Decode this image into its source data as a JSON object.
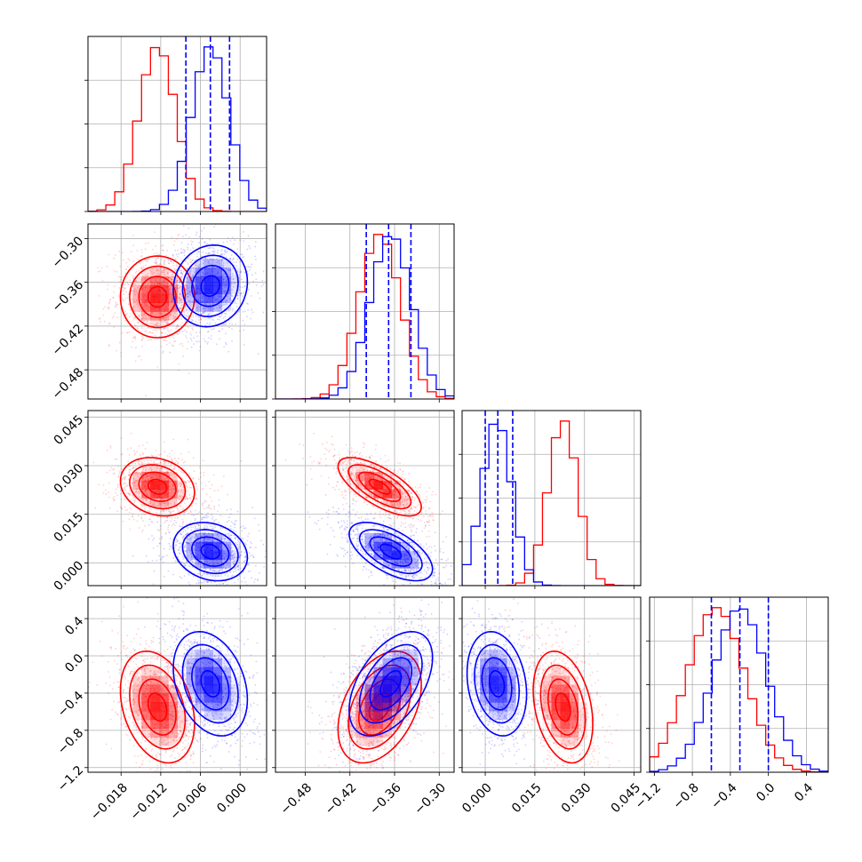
{
  "colors": {
    "red": "#ff0000",
    "blue": "#0000ff",
    "grid": "#b0b0b0",
    "axes": "#000000"
  },
  "chart_data": {
    "type": "corner",
    "parameters": [
      {
        "range": [
          -0.023,
          0.004
        ],
        "ticks": [
          -0.018,
          -0.012,
          -0.006,
          0.0
        ],
        "tick_labels": [
          "−0.018",
          "−0.012",
          "−0.006",
          "0.000"
        ]
      },
      {
        "range": [
          -0.52,
          -0.28
        ],
        "ticks": [
          -0.48,
          -0.42,
          -0.36,
          -0.3
        ],
        "tick_labels": [
          "−0.48",
          "−0.42",
          "−0.36",
          "−0.30"
        ]
      },
      {
        "range": [
          -0.007,
          0.047
        ],
        "ticks": [
          0.0,
          0.015,
          0.03,
          0.045
        ],
        "tick_labels": [
          "0.000",
          "0.015",
          "0.030",
          "0.045"
        ]
      },
      {
        "range": [
          -1.25,
          0.63
        ],
        "ticks": [
          -1.2,
          -0.8,
          -0.4,
          0.0,
          0.4
        ],
        "tick_labels": [
          "−1.2",
          "−0.8",
          "−0.4",
          "0.0",
          "0.4"
        ]
      }
    ],
    "series": [
      {
        "color": "#ff0000",
        "mean": [
          -0.0125,
          -0.38,
          0.0235,
          -0.55
        ],
        "sd": [
          0.0028,
          0.028,
          0.0045,
          0.3
        ],
        "corr": {
          "0-1": 0.0,
          "0-2": -0.2,
          "0-3": -0.3,
          "1-2": -0.7,
          "1-3": 0.4,
          "2-3": -0.3
        }
      },
      {
        "color": "#0000ff",
        "mean": [
          -0.0045,
          -0.365,
          0.0035,
          -0.3
        ],
        "sd": [
          0.0028,
          0.028,
          0.0045,
          0.28
        ],
        "corr": {
          "0-1": 0.1,
          "0-2": -0.2,
          "0-3": -0.3,
          "1-2": -0.6,
          "1-3": 0.5,
          "2-3": -0.2
        }
      }
    ],
    "quantiles_blue": [
      [
        -0.0082,
        -0.0045,
        -0.0016
      ],
      [
        -0.398,
        -0.368,
        -0.338
      ],
      [
        0.0,
        0.0038,
        0.0083
      ],
      [
        -0.6,
        -0.3,
        0.0
      ]
    ],
    "grid": true
  }
}
